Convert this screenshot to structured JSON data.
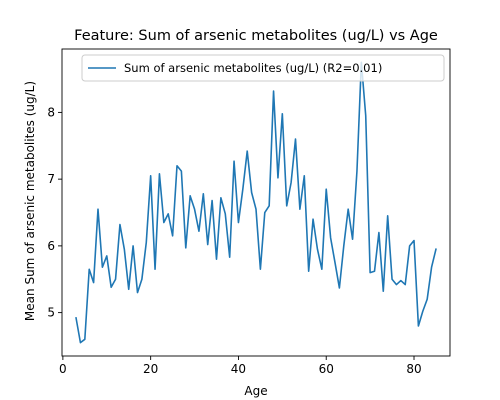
{
  "chart_data": {
    "type": "line",
    "title": "Feature: Sum of arsenic metabolites (ug/L) vs Age",
    "xlabel": "Age",
    "ylabel": "Mean Sum of arsenic metabolites (ug/L)",
    "xlim": [
      -0.2,
      88.2
    ],
    "ylim": [
      4.35,
      8.95
    ],
    "xticks": [
      0,
      20,
      40,
      60,
      80
    ],
    "yticks": [
      5,
      6,
      7,
      8
    ],
    "grid": false,
    "legend_position": "top-right",
    "colors": {
      "line": "#1f77b4"
    },
    "series": [
      {
        "name": "Sum of arsenic metabolites (ug/L) (R2=0.01)",
        "x": [
          3,
          4,
          5,
          6,
          7,
          8,
          9,
          10,
          11,
          12,
          13,
          14,
          15,
          16,
          17,
          18,
          19,
          20,
          21,
          22,
          23,
          24,
          25,
          26,
          27,
          28,
          29,
          30,
          31,
          32,
          33,
          34,
          35,
          36,
          37,
          38,
          39,
          40,
          41,
          42,
          43,
          44,
          45,
          46,
          47,
          48,
          49,
          50,
          51,
          52,
          53,
          54,
          55,
          56,
          57,
          58,
          59,
          60,
          61,
          62,
          63,
          64,
          65,
          66,
          67,
          68,
          69,
          70,
          71,
          72,
          73,
          74,
          75,
          76,
          77,
          78,
          79,
          80,
          81,
          82,
          83,
          84,
          85
        ],
        "y": [
          4.92,
          4.55,
          4.6,
          5.65,
          5.45,
          6.55,
          5.68,
          5.85,
          5.38,
          5.5,
          6.32,
          5.95,
          5.35,
          6.0,
          5.3,
          5.5,
          6.05,
          7.05,
          5.65,
          7.08,
          6.35,
          6.48,
          6.15,
          7.2,
          7.12,
          5.97,
          6.75,
          6.55,
          6.22,
          6.78,
          6.02,
          6.68,
          5.8,
          6.72,
          6.48,
          5.83,
          7.27,
          6.35,
          6.85,
          7.42,
          6.8,
          6.55,
          5.65,
          6.5,
          6.6,
          8.32,
          7.02,
          7.98,
          6.6,
          6.95,
          7.6,
          6.55,
          7.05,
          5.62,
          6.4,
          5.95,
          5.65,
          6.85,
          6.12,
          5.75,
          5.37,
          6.0,
          6.55,
          6.1,
          7.12,
          8.75,
          7.95,
          5.6,
          5.62,
          6.2,
          5.32,
          6.45,
          5.5,
          5.42,
          5.48,
          5.42,
          6.0,
          6.08,
          4.8,
          5.02,
          5.2,
          5.68,
          5.95
        ]
      }
    ]
  }
}
